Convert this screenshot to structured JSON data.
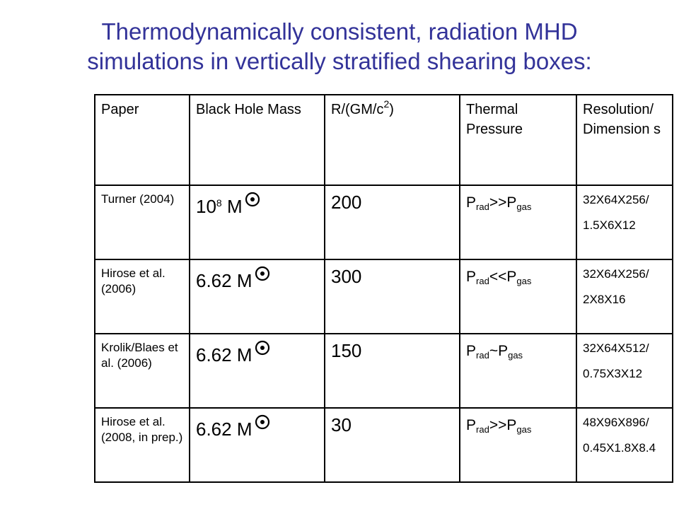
{
  "title": {
    "line1": "Thermodynamically consistent, radiation MHD",
    "line2": "simulations in vertically stratified shearing boxes:"
  },
  "table": {
    "headers": {
      "paper": "Paper",
      "mass": "Black Hole Mass",
      "radius_prefix": "R/(GM/c",
      "radius_sup": "2",
      "radius_suffix": ")",
      "pressure": "Thermal Pressure",
      "resolution": "Resolution/ Dimension s"
    },
    "rows": [
      {
        "paper": "Turner (2004)",
        "mass_coef": "10",
        "mass_exp": "8",
        "mass_unit": "M",
        "radius": "200",
        "p_left": "P",
        "p_left_sub": "rad",
        "p_op": ">>P",
        "p_right_sub": "gas",
        "res_line1": "32X64X256/",
        "res_line2": "1.5X6X12"
      },
      {
        "paper": "Hirose et al. (2006)",
        "mass_coef": "6.62 M",
        "radius": "300",
        "p_left": "P",
        "p_left_sub": "rad",
        "p_op": "<<P",
        "p_right_sub": "gas",
        "res_line1": "32X64X256/",
        "res_line2": "2X8X16"
      },
      {
        "paper": "Krolik/Blaes et al. (2006)",
        "mass_coef": "6.62 M",
        "radius": "150",
        "p_left": "P",
        "p_left_sub": "rad",
        "p_op": "~P",
        "p_right_sub": "gas",
        "res_line1": "32X64X512/",
        "res_line2": "0.75X3X12"
      },
      {
        "paper": "Hirose et al. (2008, in prep.)",
        "mass_coef": "6.62 M",
        "radius": "30",
        "p_left": "P",
        "p_left_sub": "rad",
        "p_op": ">>P",
        "p_right_sub": "gas",
        "res_line1": "48X96X896/",
        "res_line2": "0.45X1.8X8.4"
      }
    ]
  },
  "colors": {
    "title": "#333399",
    "header": "#3399cc",
    "border": "#000000"
  },
  "icons": {
    "solar_mass": "sun-icon"
  }
}
